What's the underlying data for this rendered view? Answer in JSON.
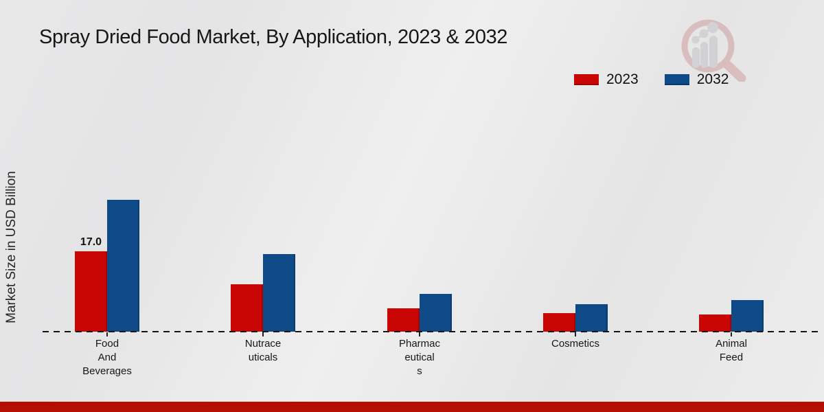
{
  "annotation": {
    "text": "17.0",
    "category_index": 0,
    "series_index": 0
  },
  "footer_color": "#b50e02",
  "chart_data": {
    "type": "bar",
    "title": "Spray Dried Food Market, By Application, 2023 & 2032",
    "xlabel": "",
    "ylabel": "Market Size in USD Billion",
    "categories": [
      "Food And Beverages",
      "Nutraceuticals",
      "Pharmaceuticals",
      "Cosmetics",
      "Animal Feed"
    ],
    "category_label_lines": [
      [
        "Food",
        "And",
        "Beverages"
      ],
      [
        "Nutrace",
        "uticals"
      ],
      [
        "Pharmac",
        "eutical",
        "s"
      ],
      [
        "Cosmetics"
      ],
      [
        "Animal",
        "Feed"
      ]
    ],
    "series": [
      {
        "name": "2023",
        "color": "#c90604",
        "values": [
          17.0,
          10.0,
          5.0,
          3.9,
          3.7
        ]
      },
      {
        "name": "2032",
        "color": "#0d4a87",
        "values": [
          28.0,
          16.4,
          8.0,
          5.9,
          6.7
        ]
      }
    ],
    "ylim": [
      0,
      30
    ],
    "grid": false,
    "axis_line": "dashed-baseline-only",
    "legend_position": "top-right",
    "data_label_shown": "17.0 above the 2023 Food And Beverages bar"
  }
}
